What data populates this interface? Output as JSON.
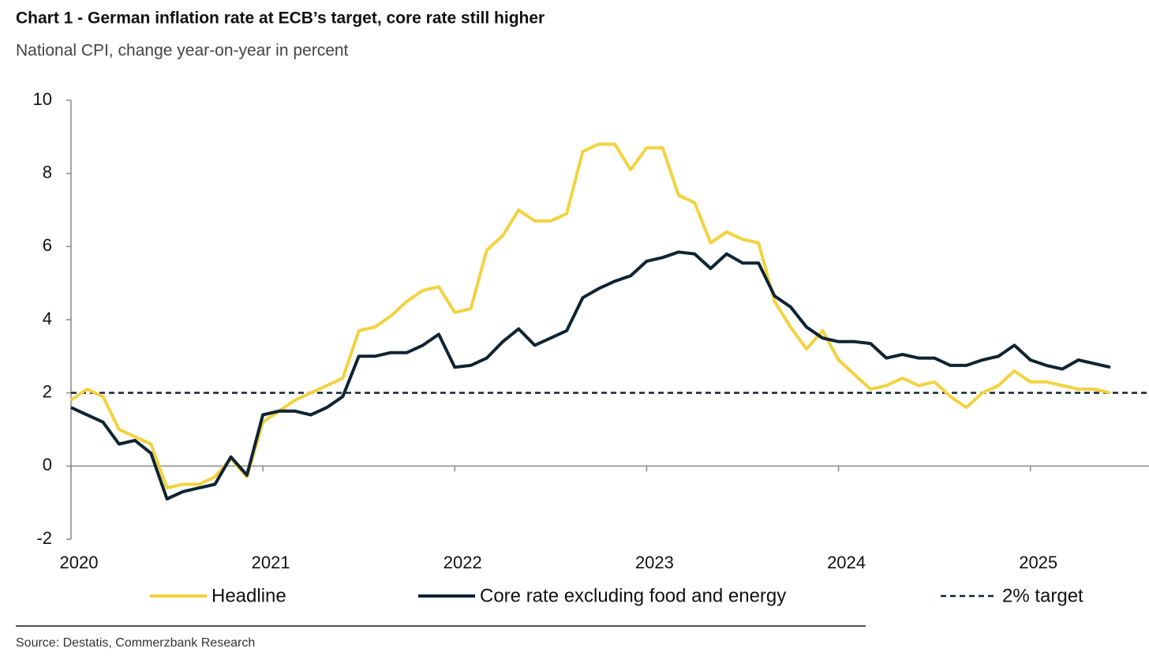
{
  "chart_data": {
    "type": "line",
    "title": "Chart 1 - German inflation rate at ECB’s target, core rate still higher",
    "subtitle": "National CPI, change year-on-year in percent",
    "source": "Source: Destatis, Commerzbank Research",
    "categories": [
      "2020",
      null,
      null,
      null,
      null,
      null,
      null,
      null,
      null,
      null,
      null,
      null,
      "2021",
      null,
      null,
      null,
      null,
      null,
      null,
      null,
      null,
      null,
      null,
      null,
      "2022",
      null,
      null,
      null,
      null,
      null,
      null,
      null,
      null,
      null,
      null,
      null,
      "2023",
      null,
      null,
      null,
      null,
      null,
      null,
      null,
      null,
      null,
      null,
      null,
      "2024",
      null,
      null,
      null,
      null,
      null,
      null,
      null,
      null,
      null,
      null,
      null,
      "2025",
      null,
      null,
      null,
      null,
      null
    ],
    "series": [
      {
        "name": "Headline",
        "color": "#f3d23f",
        "values": [
          1.8,
          2.1,
          1.9,
          1.0,
          0.8,
          0.6,
          -0.6,
          -0.5,
          -0.5,
          -0.3,
          0.2,
          -0.3,
          1.2,
          1.5,
          1.8,
          2.0,
          2.2,
          2.4,
          3.7,
          3.8,
          4.1,
          4.5,
          4.8,
          4.9,
          4.2,
          4.3,
          5.9,
          6.3,
          7.0,
          6.7,
          6.7,
          6.9,
          8.6,
          8.8,
          8.8,
          8.1,
          8.7,
          8.7,
          7.4,
          7.2,
          6.1,
          6.4,
          6.2,
          6.1,
          4.5,
          3.8,
          3.2,
          3.7,
          2.9,
          2.5,
          2.1,
          2.2,
          2.4,
          2.2,
          2.3,
          1.9,
          1.6,
          2.0,
          2.2,
          2.6,
          2.3,
          2.3,
          2.2,
          2.1,
          2.1,
          2.0
        ]
      },
      {
        "name": "Core rate excluding food and energy",
        "color": "#0e2433",
        "values": [
          1.6,
          1.4,
          1.2,
          0.6,
          0.7,
          0.35,
          -0.9,
          -0.7,
          -0.6,
          -0.5,
          0.25,
          -0.25,
          1.4,
          1.5,
          1.5,
          1.4,
          1.6,
          1.9,
          3.0,
          3.0,
          3.1,
          3.1,
          3.3,
          3.6,
          2.7,
          2.75,
          2.95,
          3.4,
          3.75,
          3.3,
          3.5,
          3.7,
          4.6,
          4.85,
          5.05,
          5.2,
          5.6,
          5.7,
          5.85,
          5.8,
          5.4,
          5.8,
          5.55,
          5.55,
          4.65,
          4.35,
          3.8,
          3.5,
          3.4,
          3.4,
          3.35,
          2.95,
          3.05,
          2.95,
          2.95,
          2.75,
          2.75,
          2.9,
          3.0,
          3.3,
          2.9,
          2.75,
          2.65,
          2.9,
          2.8,
          2.7
        ]
      }
    ],
    "target": {
      "name": "2% target",
      "value": 2,
      "color": "#0e2433"
    },
    "ylim": [
      -2,
      10
    ],
    "yticks": [
      -2,
      0,
      2,
      4,
      6,
      8,
      10
    ]
  }
}
